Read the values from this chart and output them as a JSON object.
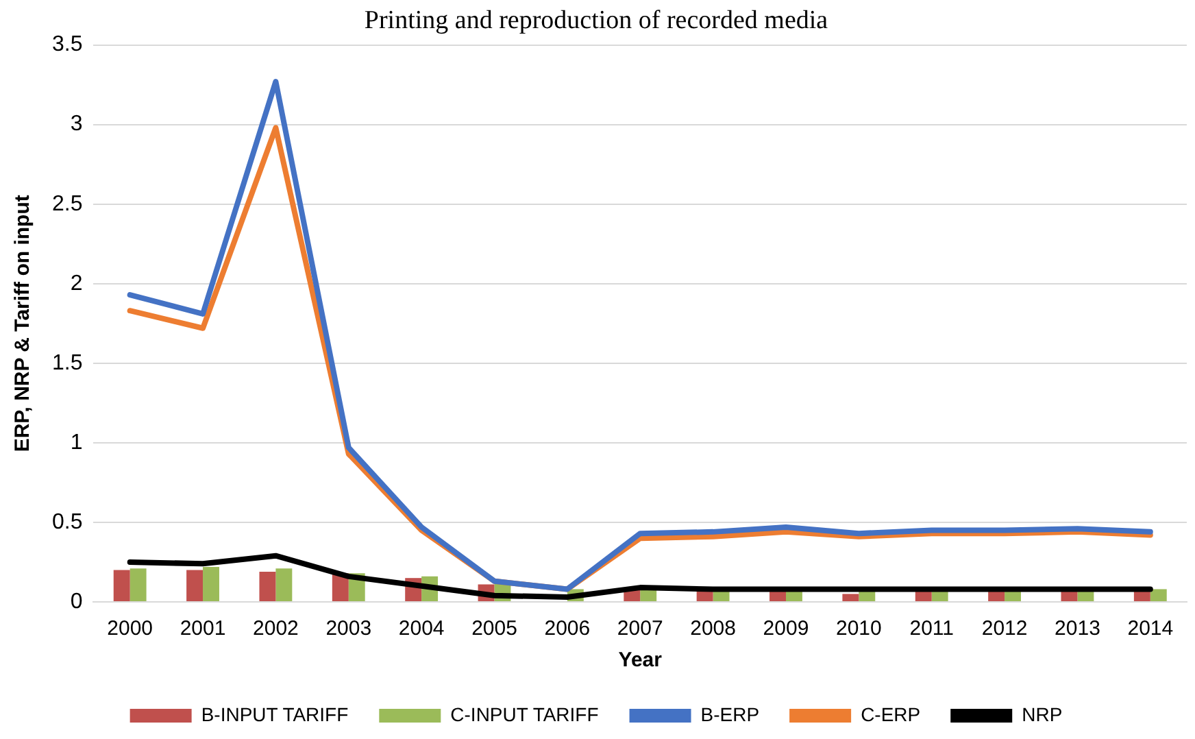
{
  "chart_data": {
    "type": "bar",
    "title": "Printing and reproduction of recorded media",
    "xlabel": "Year",
    "ylabel": "ERP, NRP & Tariff on input",
    "categories": [
      "2000",
      "2001",
      "2002",
      "2003",
      "2004",
      "2005",
      "2006",
      "2007",
      "2008",
      "2009",
      "2010",
      "2011",
      "2012",
      "2013",
      "2014"
    ],
    "series": [
      {
        "name": "B-INPUT TARIFF",
        "color": "#c0504d",
        "values": [
          0.2,
          0.2,
          0.19,
          0.18,
          0.15,
          0.11,
          null,
          0.08,
          0.08,
          0.08,
          0.05,
          0.08,
          0.08,
          0.08,
          0.08
        ]
      },
      {
        "name": "C-INPUT TARIFF",
        "color": "#9bbb59",
        "values": [
          0.21,
          0.22,
          0.21,
          0.18,
          0.16,
          0.12,
          0.08,
          0.08,
          0.08,
          0.08,
          0.08,
          0.08,
          0.08,
          0.08,
          0.08
        ]
      },
      {
        "name": "B-ERP",
        "type": "line",
        "color": "#4472c4",
        "values": [
          1.93,
          1.81,
          3.27,
          0.97,
          0.47,
          0.13,
          0.08,
          0.43,
          0.44,
          0.47,
          0.43,
          0.45,
          0.45,
          0.46,
          0.44
        ]
      },
      {
        "name": "C-ERP",
        "type": "line",
        "color": "#ed7d31",
        "values": [
          1.83,
          1.72,
          2.98,
          0.93,
          0.45,
          0.13,
          0.08,
          0.4,
          0.41,
          0.44,
          0.41,
          0.43,
          0.43,
          0.44,
          0.42
        ]
      },
      {
        "name": "NRP",
        "type": "line",
        "color": "#000000",
        "values": [
          0.25,
          0.24,
          0.29,
          0.16,
          0.1,
          0.04,
          0.03,
          0.09,
          0.08,
          0.08,
          0.08,
          0.08,
          0.08,
          0.08,
          0.08
        ]
      }
    ],
    "ylim": [
      0,
      3.5
    ],
    "yticks": [
      0,
      0.5,
      1,
      1.5,
      2,
      2.5,
      3,
      3.5
    ],
    "grid": "y",
    "legend": "bottom",
    "marker": "none"
  }
}
